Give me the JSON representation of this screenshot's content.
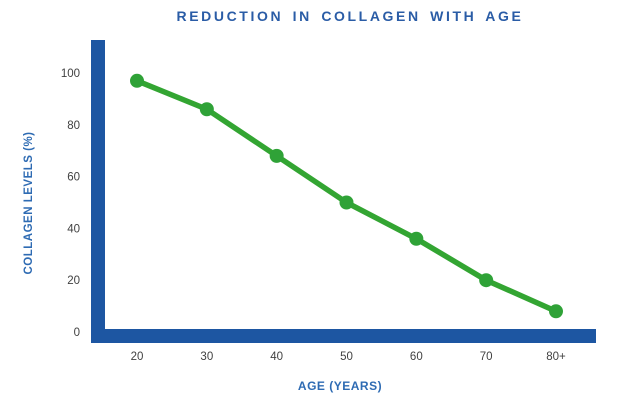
{
  "title": "REDUCTION IN COLLAGEN WITH AGE",
  "colors": {
    "title_text": "#2A5CA6",
    "axis_bar": "#1D56A2",
    "line": "#33A532",
    "marker": "#2FA237",
    "tick_text": "#414141",
    "axis_label_text": "#2E6BB3",
    "background": "#FFFFFF"
  },
  "chart_data": {
    "type": "line",
    "title": "REDUCTION IN COLLAGEN WITH AGE",
    "xlabel": "AGE (YEARS)",
    "ylabel": "COLLAGEN LEVELS (%)",
    "categories": [
      "20",
      "30",
      "40",
      "50",
      "60",
      "70",
      "80+"
    ],
    "series": [
      {
        "name": "Collagen levels (%)",
        "values": [
          97,
          86,
          68,
          50,
          36,
          20,
          8
        ]
      }
    ],
    "ylim": [
      0,
      100
    ],
    "yticks": [
      0,
      20,
      40,
      60,
      80,
      100
    ],
    "grid": false,
    "legend_position": "none",
    "marker_style": "filled-circle"
  }
}
